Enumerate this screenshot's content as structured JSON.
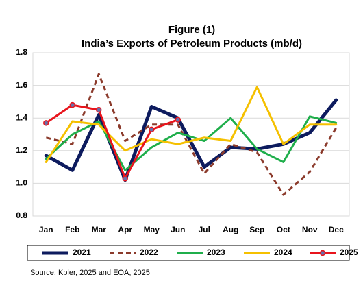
{
  "chart_data": {
    "type": "line",
    "title": "Figure (1)",
    "subtitle": "India’s Exports of Petroleum Products (mb/d)",
    "categories": [
      "Jan",
      "Feb",
      "Mar",
      "Apr",
      "May",
      "Jun",
      "Jul",
      "Aug",
      "Sep",
      "Oct",
      "Nov",
      "Dec"
    ],
    "series": [
      {
        "name": "2021",
        "color": "#0d1b5e",
        "values": [
          1.17,
          1.08,
          1.42,
          1.02,
          1.47,
          1.4,
          1.1,
          1.22,
          1.21,
          1.24,
          1.31,
          1.51
        ]
      },
      {
        "name": "2022",
        "color": "#8b3a2b",
        "dashed": true,
        "values": [
          1.28,
          1.24,
          1.67,
          1.26,
          1.36,
          1.36,
          1.06,
          1.24,
          1.19,
          0.93,
          1.07,
          1.34
        ]
      },
      {
        "name": "2023",
        "color": "#1fae4b",
        "values": [
          1.15,
          1.3,
          1.38,
          1.08,
          1.22,
          1.31,
          1.26,
          1.4,
          1.21,
          1.13,
          1.41,
          1.37
        ]
      },
      {
        "name": "2024",
        "color": "#f5c000",
        "values": [
          1.13,
          1.38,
          1.36,
          1.2,
          1.27,
          1.24,
          1.28,
          1.26,
          1.59,
          1.24,
          1.36,
          1.36
        ]
      },
      {
        "name": "2025",
        "color": "#e8141c",
        "markers": true,
        "values": [
          1.37,
          1.48,
          1.45,
          1.03,
          1.33,
          1.39,
          null,
          null,
          null,
          null,
          null,
          null
        ]
      }
    ],
    "ylim": [
      0.8,
      1.8
    ],
    "yticks": [
      0.8,
      {
        "value": 1,
        "label": "1.0"
      },
      1.2,
      1.4,
      1.6,
      1.8
    ],
    "grid": true,
    "legend": "bottom",
    "source": "Source: Kpler, 2025 and EOA, 2025"
  }
}
